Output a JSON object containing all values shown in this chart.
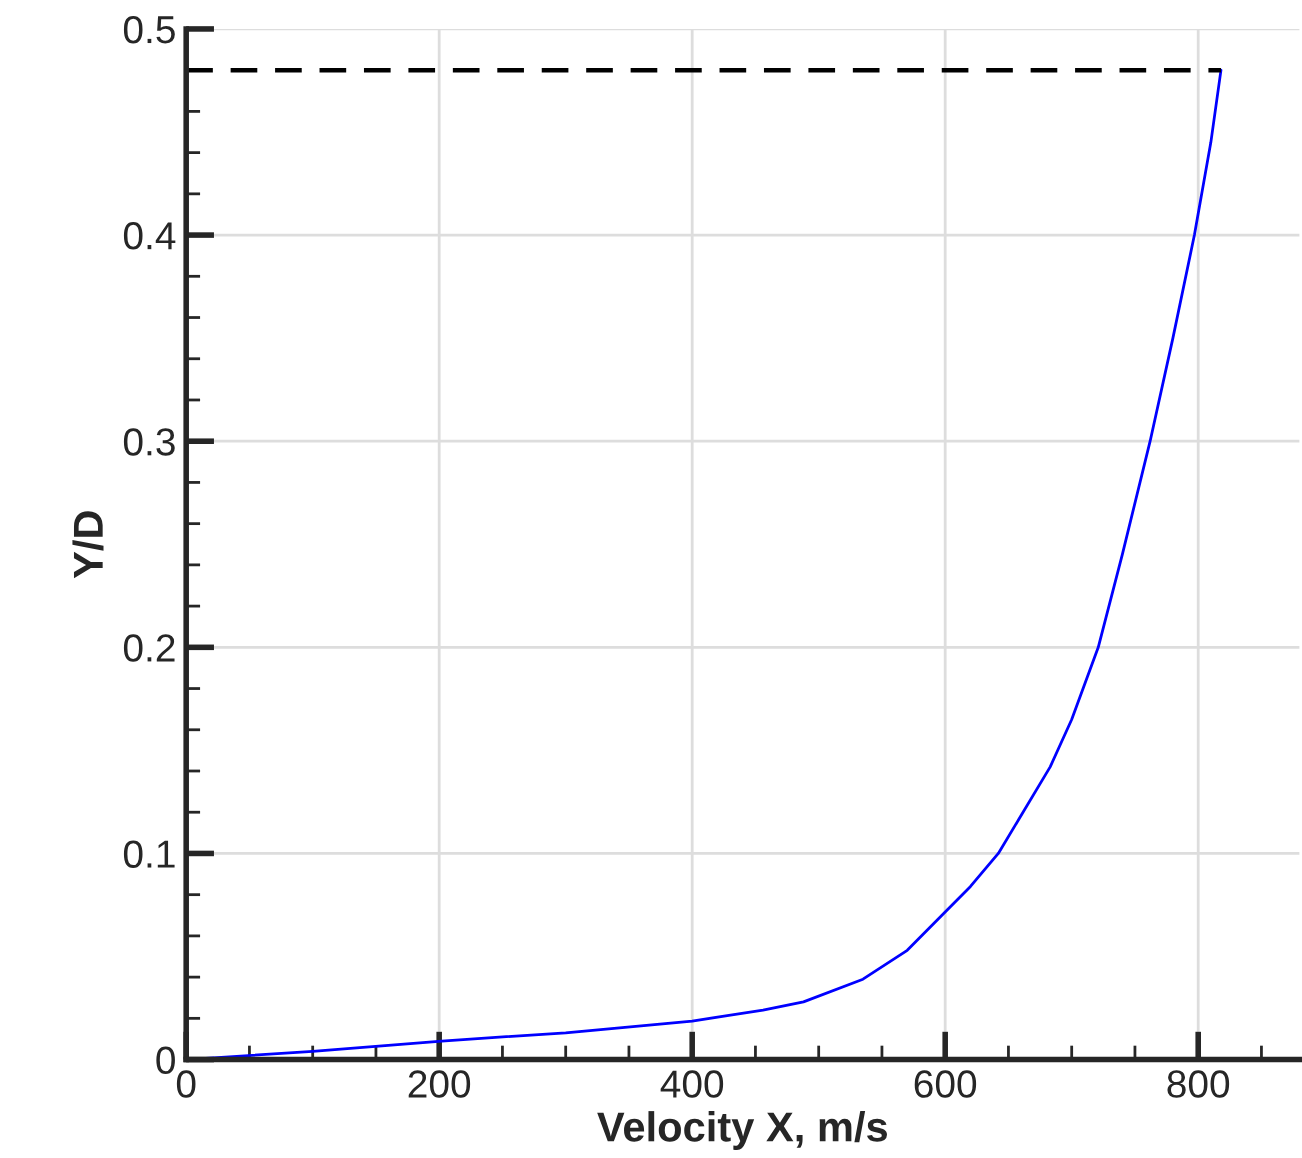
{
  "chart_data": {
    "type": "line",
    "xlabel": "Velocity X, m/s",
    "ylabel": "Y/D",
    "xlim": [
      0,
      880
    ],
    "ylim": [
      0,
      0.5
    ],
    "xticks": [
      0,
      200,
      400,
      600,
      800
    ],
    "yticks": [
      0,
      0.1,
      0.2,
      0.3,
      0.4,
      0.5
    ],
    "grid": true,
    "series": [
      {
        "color": "#0000ff",
        "x": [
          0,
          100,
          202,
          300,
          400,
          456,
          488,
          535,
          570,
          599,
          620,
          642,
          683,
          700,
          721,
          740,
          762,
          780,
          797,
          810,
          818
        ],
        "values": [
          0,
          0.004,
          0.009,
          0.013,
          0.0187,
          0.024,
          0.028,
          0.039,
          0.053,
          0.071,
          0.084,
          0.1,
          0.142,
          0.165,
          0.2,
          0.245,
          0.3,
          0.35,
          0.4,
          0.445,
          0.48
        ],
        "line_style": "solid"
      },
      {
        "color": "#000000",
        "x": [
          0,
          818
        ],
        "values": [
          0.48,
          0.48
        ],
        "line_style": "dashed"
      }
    ]
  }
}
